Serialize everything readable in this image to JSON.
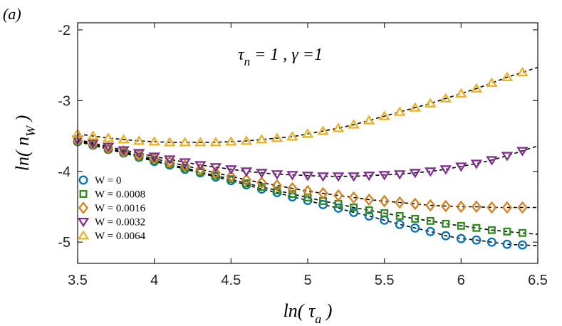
{
  "panel_label": "(a)",
  "chart_data": {
    "type": "scatter",
    "annotation": {
      "tau": "τ",
      "tau_sub": "n",
      "eq1": " = 1 , ",
      "gamma": "γ",
      "eq2": " =1"
    },
    "xlabel": {
      "prefix": "ln( ",
      "symbol": "τ",
      "sub": "a",
      "suffix": " )"
    },
    "ylabel": {
      "prefix": "ln( ",
      "symbol": "n",
      "sub": "W",
      "suffix": " )"
    },
    "xlim": [
      3.5,
      6.5
    ],
    "ylim": [
      -5.3,
      -1.9
    ],
    "xticks": [
      3.5,
      4,
      4.5,
      5,
      5.5,
      6,
      6.5
    ],
    "xtick_labels": [
      "3.5",
      "4",
      "4.5",
      "5",
      "5.5",
      "6",
      "6.5"
    ],
    "yticks": [
      -5,
      -4,
      -3,
      -2
    ],
    "ytick_labels": [
      "-5",
      "-4",
      "-3",
      "-2"
    ],
    "legend_location": "bottom-left",
    "fit_lines": "dashed black",
    "series": [
      {
        "name": "W = 0",
        "marker": "circle",
        "color": "#0072BD",
        "x": [
          3.5,
          3.6,
          3.7,
          3.8,
          3.9,
          4.0,
          4.1,
          4.2,
          4.3,
          4.4,
          4.5,
          4.6,
          4.7,
          4.8,
          4.9,
          5.0,
          5.1,
          5.2,
          5.3,
          5.4,
          5.5,
          5.6,
          5.7,
          5.8,
          5.9,
          6.0,
          6.1,
          6.2,
          6.3,
          6.4
        ],
        "y": [
          -3.58,
          -3.63,
          -3.69,
          -3.74,
          -3.8,
          -3.86,
          -3.91,
          -3.97,
          -4.02,
          -4.08,
          -4.13,
          -4.19,
          -4.25,
          -4.3,
          -4.36,
          -4.41,
          -4.47,
          -4.52,
          -4.58,
          -4.63,
          -4.69,
          -4.75,
          -4.8,
          -4.85,
          -4.91,
          -4.95,
          -4.97,
          -5.0,
          -5.03,
          -5.04
        ]
      },
      {
        "name": "W = 0.0008",
        "marker": "square",
        "color": "#2E8B1C",
        "x": [
          3.5,
          3.6,
          3.7,
          3.8,
          3.9,
          4.0,
          4.1,
          4.2,
          4.3,
          4.4,
          4.5,
          4.6,
          4.7,
          4.8,
          4.9,
          5.0,
          5.1,
          5.2,
          5.3,
          5.4,
          5.5,
          5.6,
          5.7,
          5.8,
          5.9,
          6.0,
          6.1,
          6.2,
          6.3,
          6.4
        ],
        "y": [
          -3.57,
          -3.62,
          -3.68,
          -3.73,
          -3.79,
          -3.84,
          -3.9,
          -3.95,
          -4.01,
          -4.06,
          -4.11,
          -4.17,
          -4.22,
          -4.27,
          -4.32,
          -4.37,
          -4.42,
          -4.46,
          -4.51,
          -4.55,
          -4.59,
          -4.63,
          -4.67,
          -4.7,
          -4.74,
          -4.77,
          -4.8,
          -4.83,
          -4.85,
          -4.87
        ]
      },
      {
        "name": "W = 0.0016",
        "marker": "diamond",
        "color": "#D9801A",
        "x": [
          3.5,
          3.6,
          3.7,
          3.8,
          3.9,
          4.0,
          4.1,
          4.2,
          4.3,
          4.4,
          4.5,
          4.6,
          4.7,
          4.8,
          4.9,
          5.0,
          5.1,
          5.2,
          5.3,
          5.4,
          5.5,
          5.6,
          5.7,
          5.8,
          5.9,
          6.0,
          6.1,
          6.2,
          6.3,
          6.4
        ],
        "y": [
          -3.56,
          -3.61,
          -3.67,
          -3.72,
          -3.77,
          -3.82,
          -3.87,
          -3.92,
          -3.97,
          -4.02,
          -4.07,
          -4.12,
          -4.16,
          -4.2,
          -4.24,
          -4.28,
          -4.31,
          -4.34,
          -4.37,
          -4.4,
          -4.42,
          -4.44,
          -4.46,
          -4.48,
          -4.49,
          -4.5,
          -4.5,
          -4.51,
          -4.51,
          -4.51
        ]
      },
      {
        "name": "W = 0.0032",
        "marker": "triangle-down",
        "color": "#7E2F8E",
        "x": [
          3.5,
          3.6,
          3.7,
          3.8,
          3.9,
          4.0,
          4.1,
          4.2,
          4.3,
          4.4,
          4.5,
          4.6,
          4.7,
          4.8,
          4.9,
          5.0,
          5.1,
          5.2,
          5.3,
          5.4,
          5.5,
          5.6,
          5.7,
          5.8,
          5.9,
          6.0,
          6.1,
          6.2,
          6.3,
          6.4
        ],
        "y": [
          -3.55,
          -3.6,
          -3.65,
          -3.7,
          -3.74,
          -3.79,
          -3.83,
          -3.87,
          -3.91,
          -3.94,
          -3.97,
          -4.0,
          -4.02,
          -4.04,
          -4.05,
          -4.06,
          -4.07,
          -4.07,
          -4.07,
          -4.06,
          -4.05,
          -4.04,
          -4.02,
          -4.0,
          -3.97,
          -3.93,
          -3.89,
          -3.84,
          -3.78,
          -3.71
        ]
      },
      {
        "name": "W = 0.0064",
        "marker": "triangle-up",
        "color": "#EDB120",
        "x": [
          3.5,
          3.6,
          3.7,
          3.8,
          3.9,
          4.0,
          4.1,
          4.2,
          4.3,
          4.4,
          4.5,
          4.6,
          4.7,
          4.8,
          4.9,
          5.0,
          5.1,
          5.2,
          5.3,
          5.4,
          5.5,
          5.6,
          5.7,
          5.8,
          5.9,
          6.0,
          6.1,
          6.2,
          6.3,
          6.4
        ],
        "y": [
          -3.47,
          -3.5,
          -3.53,
          -3.55,
          -3.57,
          -3.58,
          -3.59,
          -3.59,
          -3.59,
          -3.59,
          -3.58,
          -3.57,
          -3.55,
          -3.53,
          -3.51,
          -3.47,
          -3.43,
          -3.39,
          -3.34,
          -3.28,
          -3.22,
          -3.16,
          -3.1,
          -3.04,
          -2.97,
          -2.9,
          -2.83,
          -2.75,
          -2.67,
          -2.6
        ]
      }
    ]
  }
}
